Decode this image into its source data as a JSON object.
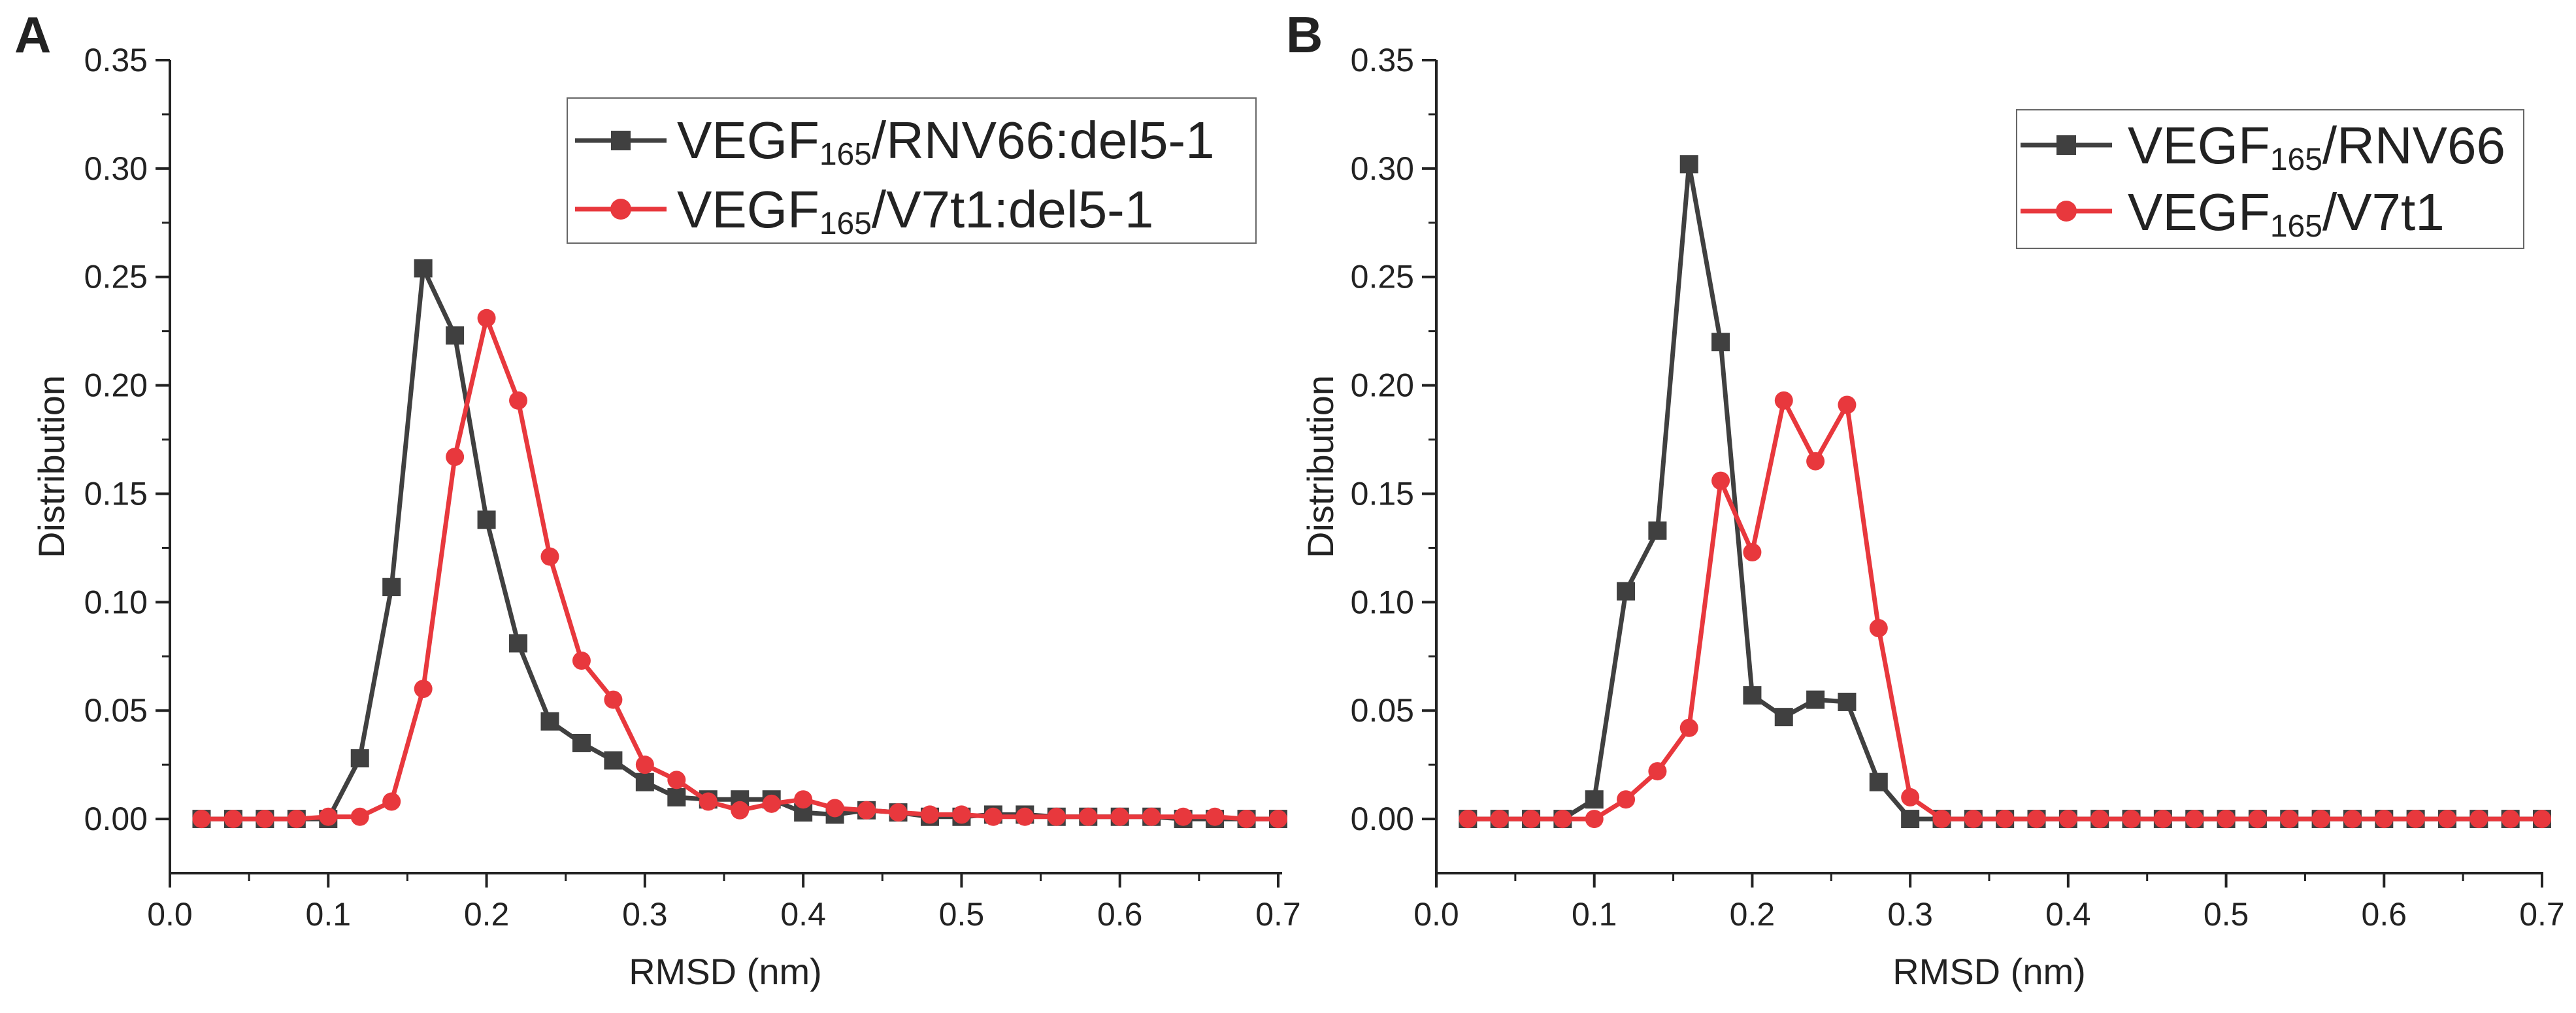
{
  "colors": {
    "series_gray": "#404040",
    "series_red": "#e8383d",
    "axis": "#222222"
  },
  "chart_data": [
    {
      "panel_label": "A",
      "type": "line",
      "xlabel": "RMSD (nm)",
      "ylabel": "Distribution",
      "xlim": [
        0.0,
        0.7
      ],
      "ylim": [
        -0.025,
        0.35
      ],
      "xticks": [
        "0.0",
        "0.1",
        "0.2",
        "0.3",
        "0.4",
        "0.5",
        "0.6",
        "0.7"
      ],
      "yticks": [
        "0.00",
        "0.05",
        "0.10",
        "0.15",
        "0.20",
        "0.25",
        "0.30",
        "0.35"
      ],
      "x": [
        0.02,
        0.04,
        0.06,
        0.08,
        0.1,
        0.12,
        0.14,
        0.16,
        0.18,
        0.2,
        0.22,
        0.24,
        0.26,
        0.28,
        0.3,
        0.32,
        0.34,
        0.36,
        0.38,
        0.4,
        0.42,
        0.44,
        0.46,
        0.48,
        0.5,
        0.52,
        0.54,
        0.56,
        0.58,
        0.6,
        0.62,
        0.64,
        0.66,
        0.68,
        0.7
      ],
      "legend_position": "top-right",
      "series": [
        {
          "name": "VEGF165/RNV66:del5-1",
          "legend": {
            "pre": "VEGF",
            "sub": "165",
            "post": "/RNV66:del5-1"
          },
          "marker": "square",
          "color": "#404040",
          "values": [
            0,
            0,
            0,
            0,
            0,
            0.028,
            0.107,
            0.254,
            0.223,
            0.138,
            0.081,
            0.045,
            0.035,
            0.027,
            0.017,
            0.01,
            0.009,
            0.009,
            0.009,
            0.003,
            0.002,
            0.004,
            0.003,
            0.001,
            0.001,
            0.002,
            0.002,
            0.001,
            0.001,
            0.001,
            0.001,
            0,
            0,
            0,
            0
          ]
        },
        {
          "name": "VEGF165/V7t1:del5-1",
          "legend": {
            "pre": "VEGF",
            "sub": "165",
            "post": "/V7t1:del5-1"
          },
          "marker": "circle",
          "color": "#e8383d",
          "values": [
            0,
            0,
            0,
            0,
            0.001,
            0.001,
            0.008,
            0.06,
            0.167,
            0.231,
            0.193,
            0.121,
            0.073,
            0.055,
            0.025,
            0.018,
            0.008,
            0.004,
            0.007,
            0.009,
            0.005,
            0.004,
            0.003,
            0.002,
            0.002,
            0.001,
            0.001,
            0.001,
            0.001,
            0.001,
            0.001,
            0.001,
            0.001,
            0,
            0
          ]
        }
      ]
    },
    {
      "panel_label": "B",
      "type": "line",
      "xlabel": "RMSD (nm)",
      "ylabel": "Distribution",
      "xlim": [
        0.0,
        0.7
      ],
      "ylim": [
        -0.025,
        0.35
      ],
      "xticks": [
        "0.0",
        "0.1",
        "0.2",
        "0.3",
        "0.4",
        "0.5",
        "0.6",
        "0.7"
      ],
      "yticks": [
        "0.00",
        "0.05",
        "0.10",
        "0.15",
        "0.20",
        "0.25",
        "0.30",
        "0.35"
      ],
      "x": [
        0.02,
        0.04,
        0.06,
        0.08,
        0.1,
        0.12,
        0.14,
        0.16,
        0.18,
        0.2,
        0.22,
        0.24,
        0.26,
        0.28,
        0.3,
        0.32,
        0.34,
        0.36,
        0.38,
        0.4,
        0.42,
        0.44,
        0.46,
        0.48,
        0.5,
        0.52,
        0.54,
        0.56,
        0.58,
        0.6,
        0.62,
        0.64,
        0.66,
        0.68,
        0.7
      ],
      "legend_position": "top-right",
      "series": [
        {
          "name": "VEGF165/RNV66",
          "legend": {
            "pre": "VEGF",
            "sub": "165",
            "post": "/RNV66"
          },
          "marker": "square",
          "color": "#404040",
          "values": [
            0,
            0,
            0,
            0,
            0.009,
            0.105,
            0.133,
            0.302,
            0.22,
            0.057,
            0.047,
            0.055,
            0.054,
            0.017,
            0,
            0,
            0,
            0,
            0,
            0,
            0,
            0,
            0,
            0,
            0,
            0,
            0,
            0,
            0,
            0,
            0,
            0,
            0,
            0,
            0
          ]
        },
        {
          "name": "VEGF165/V7t1",
          "legend": {
            "pre": "VEGF",
            "sub": "165",
            "post": "/V7t1"
          },
          "marker": "circle",
          "color": "#e8383d",
          "values": [
            0,
            0,
            0,
            0,
            0,
            0.009,
            0.022,
            0.042,
            0.156,
            0.123,
            0.193,
            0.165,
            0.191,
            0.088,
            0.01,
            0,
            0,
            0,
            0,
            0,
            0,
            0,
            0,
            0,
            0,
            0,
            0,
            0,
            0,
            0,
            0,
            0,
            0,
            0,
            0
          ]
        }
      ]
    }
  ]
}
